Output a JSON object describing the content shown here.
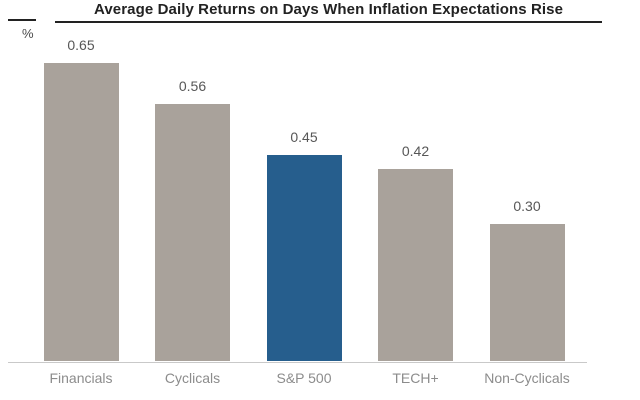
{
  "header": {
    "title": "Average Daily Returns on Days When Inflation Expectations Rise",
    "unit_label": "%"
  },
  "chart_data": {
    "type": "bar",
    "title": "Average Daily Returns on Days When Inflation Expectations Rise",
    "categories": [
      "Financials",
      "Cyclicals",
      "S&P 500",
      "TECH+",
      "Non-Cyclicals"
    ],
    "values": [
      0.65,
      0.56,
      0.45,
      0.42,
      0.3
    ],
    "value_labels": [
      "0.65",
      "0.56",
      "0.45",
      "0.42",
      "0.30"
    ],
    "highlight_index": 2,
    "highlighted_category": "S&P 500",
    "xlabel": "",
    "ylabel": "%",
    "ylim": [
      0,
      0.72
    ],
    "grid": false,
    "legend": "none",
    "value_labels_position": "above-bars",
    "colors": {
      "bar": "#A9A29B",
      "highlight": "#265E8D",
      "axis_line": "#C9C9C9",
      "title_text": "#222222",
      "value_label": "#575757",
      "category_label": "#8C8C8C"
    }
  }
}
